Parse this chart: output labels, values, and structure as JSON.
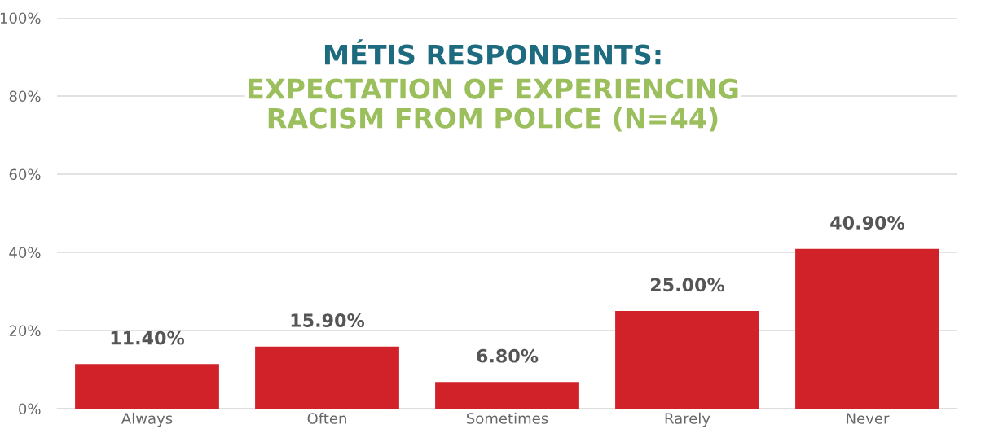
{
  "chart_data": {
    "type": "bar",
    "title": "MÉTIS RESPONDENTS:",
    "subtitle": "EXPECTATION OF EXPERIENCING RACISM FROM POLICE (N=44)",
    "categories": [
      "Always",
      "Often",
      "Sometimes",
      "Rarely",
      "Never"
    ],
    "values": [
      11.4,
      15.9,
      6.8,
      25.0,
      40.9
    ],
    "color": "#d12229",
    "value_labels": [
      "11.40%",
      "15.90%",
      "6.80%",
      "25.00%",
      "40.90%"
    ],
    "ylim": [
      0,
      100
    ],
    "yticks": [
      {
        "value": 0,
        "label": "0%"
      },
      {
        "value": 20,
        "label": "20%"
      },
      {
        "value": 40,
        "label": "40%"
      },
      {
        "value": 60,
        "label": "60%"
      },
      {
        "value": 80,
        "label": "80%"
      },
      {
        "value": 100,
        "label": "100%"
      }
    ],
    "grid": "y",
    "legend": false
  }
}
